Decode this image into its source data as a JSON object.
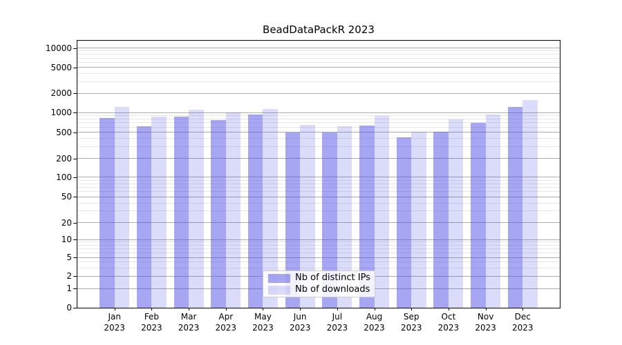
{
  "chart_data": {
    "type": "bar",
    "title": "BeadDataPackR 2023",
    "xlabel": "",
    "ylabel": "",
    "scale": "symlog",
    "grid": true,
    "legend_position": "lower center",
    "categories": [
      "Jan",
      "Feb",
      "Mar",
      "Apr",
      "May",
      "Jun",
      "Jul",
      "Aug",
      "Sep",
      "Oct",
      "Nov",
      "Dec"
    ],
    "year": "2023",
    "series": [
      {
        "name": "Nb of distinct IPs",
        "color": "rgba(77,77,230,0.5)",
        "values": [
          830,
          610,
          860,
          775,
          930,
          500,
          490,
          635,
          415,
          510,
          690,
          1220
        ]
      },
      {
        "name": "Nb of downloads",
        "color": "rgba(77,77,230,0.2)",
        "values": [
          1230,
          865,
          1100,
          1015,
          1130,
          640,
          620,
          885,
          510,
          785,
          935,
          1570
        ]
      }
    ],
    "yticks": [
      0,
      1,
      2,
      5,
      10,
      20,
      50,
      100,
      200,
      500,
      1000,
      2000,
      5000,
      10000
    ],
    "ylim": [
      0,
      10000
    ],
    "minor_gridline_multipliers": [
      3,
      4,
      6,
      7,
      8,
      9
    ],
    "minor_gridline_decades": [
      1,
      10,
      100,
      1000
    ]
  }
}
